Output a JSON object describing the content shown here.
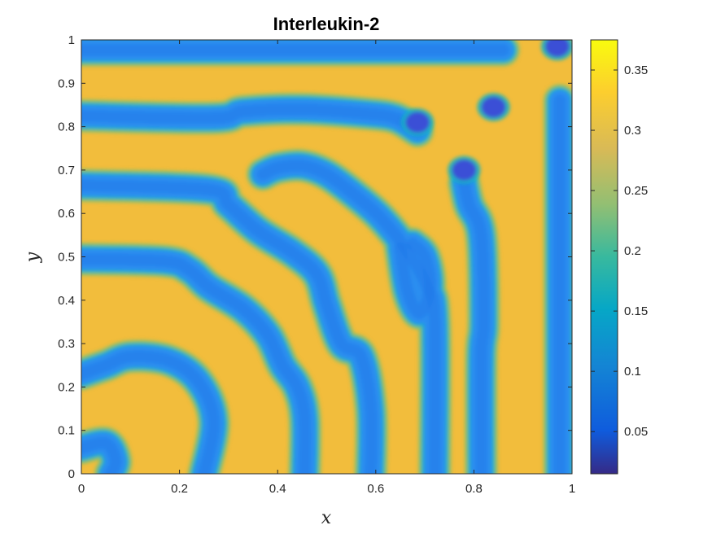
{
  "chart_data": {
    "type": "heatmap",
    "title": "Interleukin-2",
    "xlabel": "x",
    "ylabel": "y",
    "xlim": [
      0,
      1
    ],
    "ylim": [
      0,
      1
    ],
    "xticks": [
      0,
      0.2,
      0.4,
      0.6,
      0.8,
      1
    ],
    "xtick_labels": [
      "0",
      "0.2",
      "0.4",
      "0.6",
      "0.8",
      "1"
    ],
    "yticks": [
      0,
      0.1,
      0.2,
      0.3,
      0.4,
      0.5,
      0.6,
      0.7,
      0.8,
      0.9,
      1
    ],
    "ytick_labels": [
      "0",
      "0.1",
      "0.2",
      "0.3",
      "0.4",
      "0.5",
      "0.6",
      "0.7",
      "0.8",
      "0.9",
      "1"
    ],
    "colorbar": {
      "colormap": "parula",
      "clim": [
        0.015,
        0.375
      ],
      "ticks": [
        0.05,
        0.1,
        0.15,
        0.2,
        0.25,
        0.3,
        0.35
      ],
      "tick_labels": [
        "0.05",
        "0.1",
        "0.15",
        "0.2",
        "0.25",
        "0.3",
        "0.35"
      ]
    },
    "value_range": {
      "low": 0.12,
      "high": 0.32,
      "min": 0.02,
      "max": 0.37
    },
    "low_band_paths": [
      [
        [
          0.0,
          0.977
        ],
        [
          0.86,
          0.977
        ]
      ],
      [
        [
          0.0,
          0.825
        ],
        [
          0.27,
          0.82
        ],
        [
          0.33,
          0.835
        ],
        [
          0.45,
          0.84
        ],
        [
          0.58,
          0.83
        ],
        [
          0.64,
          0.82
        ],
        [
          0.685,
          0.79
        ]
      ],
      [
        [
          0.0,
          0.665
        ],
        [
          0.26,
          0.655
        ],
        [
          0.3,
          0.62
        ],
        [
          0.36,
          0.56
        ],
        [
          0.43,
          0.51
        ],
        [
          0.48,
          0.46
        ],
        [
          0.5,
          0.39
        ],
        [
          0.53,
          0.3
        ],
        [
          0.57,
          0.27
        ],
        [
          0.59,
          0.15
        ],
        [
          0.59,
          0.0
        ]
      ],
      [
        [
          0.0,
          0.495
        ],
        [
          0.17,
          0.49
        ],
        [
          0.22,
          0.47
        ],
        [
          0.26,
          0.43
        ],
        [
          0.33,
          0.38
        ],
        [
          0.38,
          0.32
        ],
        [
          0.41,
          0.25
        ],
        [
          0.44,
          0.2
        ],
        [
          0.455,
          0.13
        ],
        [
          0.455,
          0.0
        ]
      ],
      [
        [
          0.0,
          0.23
        ],
        [
          0.05,
          0.25
        ],
        [
          0.1,
          0.27
        ],
        [
          0.18,
          0.26
        ],
        [
          0.24,
          0.21
        ],
        [
          0.27,
          0.12
        ],
        [
          0.25,
          0.0
        ]
      ],
      [
        [
          0.0,
          0.06
        ],
        [
          0.05,
          0.07
        ],
        [
          0.07,
          0.03
        ],
        [
          0.06,
          0.0
        ]
      ],
      [
        [
          0.72,
          0.0
        ],
        [
          0.72,
          0.35
        ],
        [
          0.705,
          0.43
        ],
        [
          0.66,
          0.52
        ],
        [
          0.61,
          0.59
        ],
        [
          0.56,
          0.64
        ],
        [
          0.5,
          0.69
        ],
        [
          0.45,
          0.71
        ],
        [
          0.4,
          0.705
        ],
        [
          0.37,
          0.69
        ]
      ],
      [
        [
          0.815,
          0.0
        ],
        [
          0.815,
          0.27
        ],
        [
          0.82,
          0.35
        ],
        [
          0.815,
          0.55
        ],
        [
          0.79,
          0.62
        ],
        [
          0.78,
          0.67
        ]
      ],
      [
        [
          0.975,
          0.0
        ],
        [
          0.975,
          0.86
        ]
      ],
      [
        [
          0.65,
          0.52
        ],
        [
          0.665,
          0.42
        ],
        [
          0.69,
          0.37
        ],
        [
          0.71,
          0.43
        ],
        [
          0.7,
          0.5
        ],
        [
          0.675,
          0.53
        ]
      ]
    ],
    "low_blobs": [
      {
        "x": 0.685,
        "y": 0.81
      },
      {
        "x": 0.84,
        "y": 0.845
      },
      {
        "x": 0.97,
        "y": 0.985
      },
      {
        "x": 0.78,
        "y": 0.7
      }
    ]
  }
}
